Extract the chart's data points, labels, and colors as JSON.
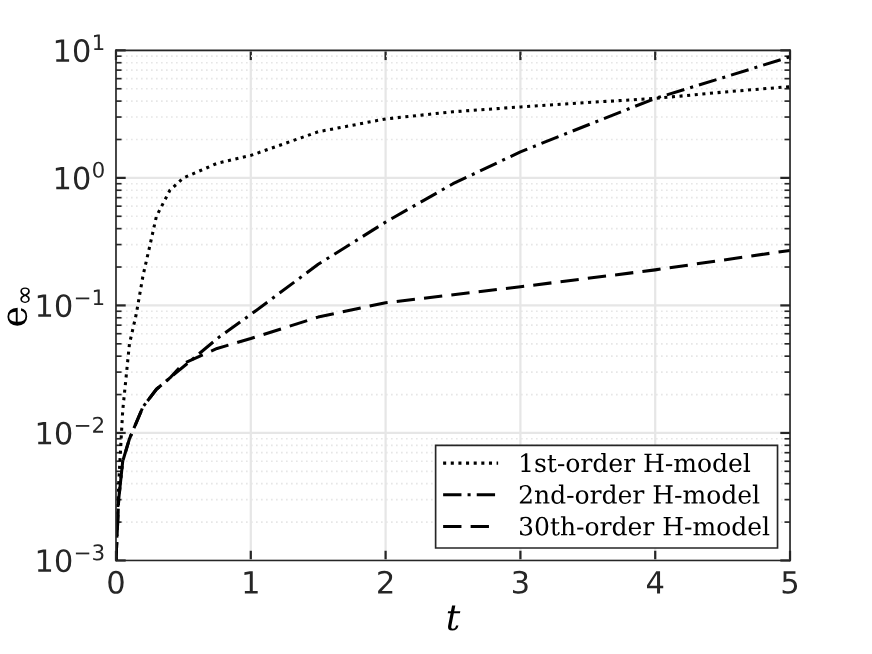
{
  "chart_data": {
    "type": "line",
    "xlabel": "t",
    "ylabel": "e$_{∞}$",
    "log": "y",
    "grid": true,
    "legend": "bottom right",
    "xlim": [
      0,
      5
    ],
    "xticks": [
      0,
      1,
      2,
      3,
      4,
      5
    ],
    "ylim": [
      0.001,
      10
    ],
    "yticks": [
      {
        "value": 0.001,
        "label": "10$^{−3}$"
      },
      {
        "value": 0.01,
        "label": "10$^{−2}$"
      },
      {
        "value": 0.1,
        "label": "10$^{−1}$"
      },
      {
        "value": 1,
        "label": "10$^{0}$"
      },
      {
        "value": 10,
        "label": "10$^{1}$"
      }
    ],
    "series": [
      {
        "name": "1st-order H-model",
        "color": "#000000",
        "line_style": "dotted",
        "x": [
          0,
          0.02,
          0.05,
          0.1,
          0.15,
          0.2,
          0.25,
          0.3,
          0.4,
          0.5,
          0.75,
          1,
          1.5,
          2,
          2.5,
          3,
          3.5,
          4,
          4.5,
          5
        ],
        "values": [
          0.001,
          0.004,
          0.015,
          0.05,
          0.085,
          0.17,
          0.29,
          0.5,
          0.8,
          1.0,
          1.3,
          1.5,
          2.3,
          2.9,
          3.3,
          3.6,
          3.9,
          4.2,
          4.7,
          5.2
        ]
      },
      {
        "name": "2nd-order H-model",
        "color": "#000000",
        "line_style": "dashdot",
        "x": [
          0,
          0.02,
          0.05,
          0.1,
          0.15,
          0.2,
          0.3,
          0.4,
          0.77,
          1,
          1.5,
          2,
          2.5,
          3,
          3.5,
          4,
          4.5,
          5
        ],
        "values": [
          0.001,
          0.003,
          0.006,
          0.009,
          0.012,
          0.016,
          0.022,
          0.027,
          0.057,
          0.085,
          0.21,
          0.45,
          0.9,
          1.6,
          2.6,
          4.2,
          6.1,
          8.9
        ]
      },
      {
        "name": "30th-order H-model",
        "color": "#000000",
        "line_style": "dashed",
        "x": [
          0,
          0.02,
          0.05,
          0.1,
          0.15,
          0.2,
          0.3,
          0.4,
          0.5,
          0.75,
          1,
          1.5,
          2,
          3,
          4,
          5
        ],
        "values": [
          0.001,
          0.003,
          0.006,
          0.009,
          0.012,
          0.016,
          0.022,
          0.027,
          0.035,
          0.046,
          0.055,
          0.081,
          0.105,
          0.14,
          0.19,
          0.27
        ]
      }
    ]
  }
}
